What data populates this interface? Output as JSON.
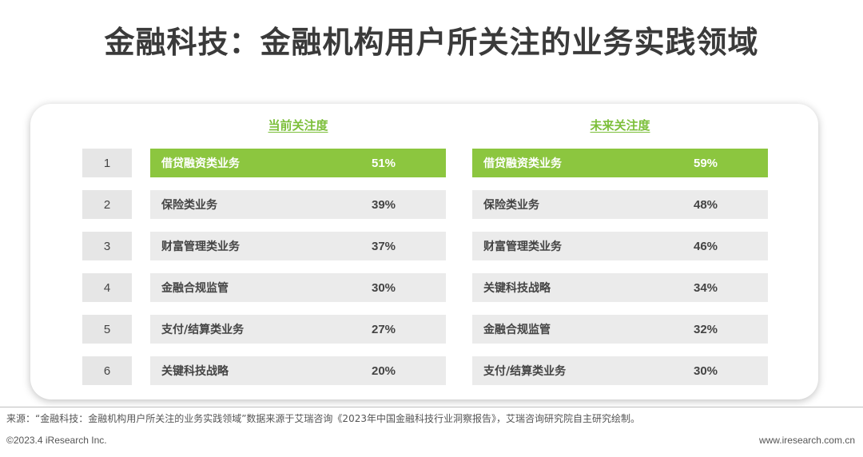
{
  "title": "金融科技：金融机构用户所关注的业务实践领域",
  "columns": {
    "current_header": "当前关注度",
    "future_header": "未来关注度"
  },
  "ranks": [
    "1",
    "2",
    "3",
    "4",
    "5",
    "6"
  ],
  "current": [
    {
      "name": "借贷融资类业务",
      "value": "51%"
    },
    {
      "name": "保险类业务",
      "value": "39%"
    },
    {
      "name": "财富管理类业务",
      "value": "37%"
    },
    {
      "name": "金融合规监管",
      "value": "30%"
    },
    {
      "name": "支付/结算类业务",
      "value": "27%"
    },
    {
      "name": "关键科技战略",
      "value": "20%"
    }
  ],
  "future": [
    {
      "name": "借贷融资类业务",
      "value": "59%"
    },
    {
      "name": "保险类业务",
      "value": "48%"
    },
    {
      "name": "财富管理类业务",
      "value": "46%"
    },
    {
      "name": "关键科技战略",
      "value": "34%"
    },
    {
      "name": "金融合规监管",
      "value": "32%"
    },
    {
      "name": "支付/结算类业务",
      "value": "30%"
    }
  ],
  "colors": {
    "highlight": "#8cc63f",
    "header": "#7cbf3a",
    "bar": "#ebebeb",
    "rank": "#e6e6e6"
  },
  "source": "来源：“金融科技：金融机构用户所关注的业务实践领域”数据来源于艾瑞咨询《2023年中国金融科技行业洞察报告》，艾瑞咨询研究院自主研究绘制。",
  "footer": {
    "copyright": "©2023.4 iResearch Inc.",
    "website": "www.iresearch.com.cn"
  }
}
